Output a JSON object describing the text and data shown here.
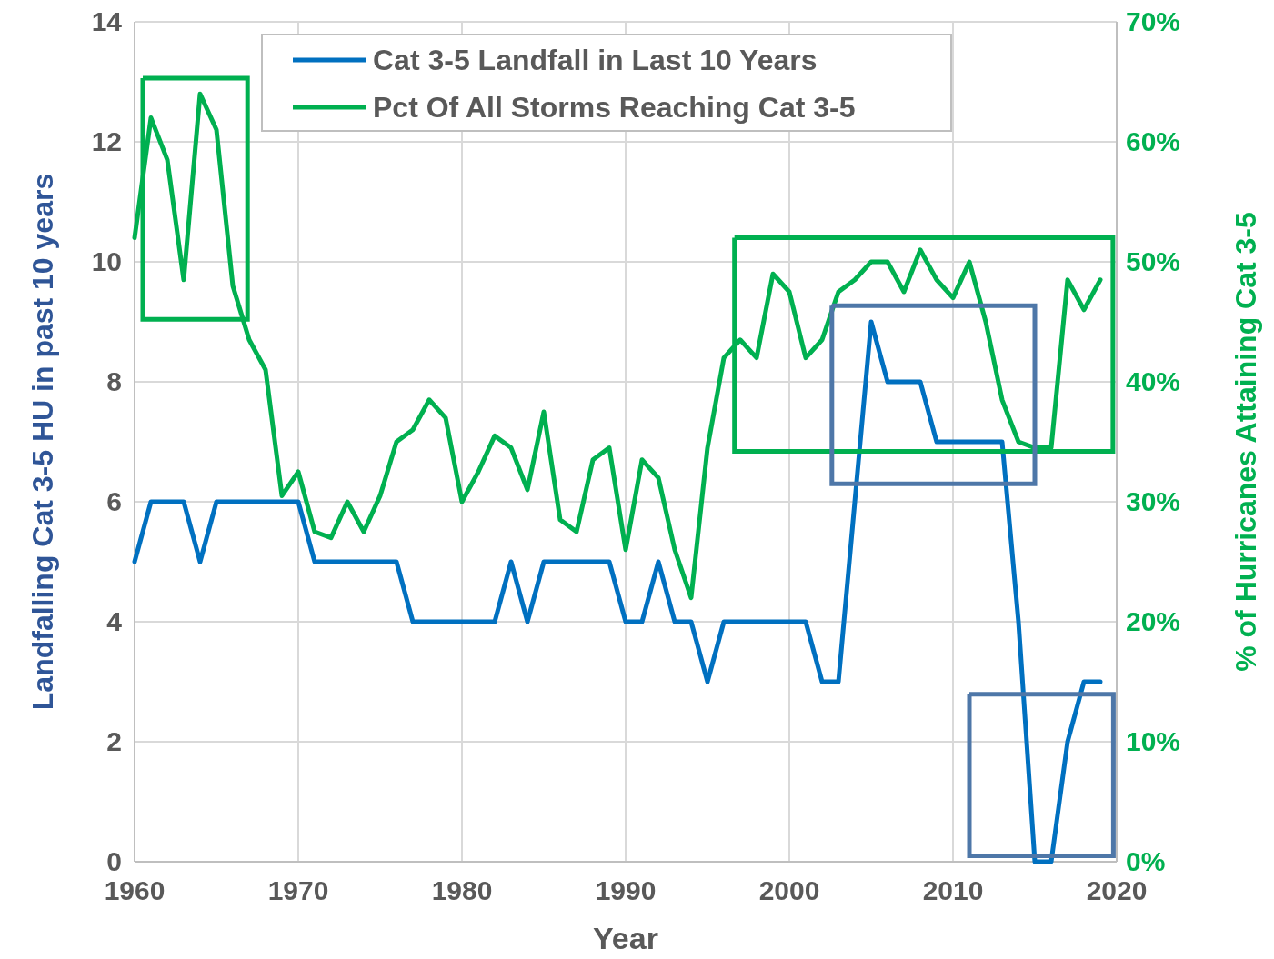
{
  "chart_data": {
    "type": "line",
    "xlabel": "Year",
    "ylabel": "Landfalling Cat 3-5 HU in past 10 years",
    "y2label": "% of Hurricanes Attaining Cat 3-5",
    "x": [
      1960,
      1961,
      1962,
      1963,
      1964,
      1965,
      1966,
      1967,
      1968,
      1969,
      1970,
      1971,
      1972,
      1973,
      1974,
      1975,
      1976,
      1977,
      1978,
      1979,
      1980,
      1981,
      1982,
      1983,
      1984,
      1985,
      1986,
      1987,
      1988,
      1989,
      1990,
      1991,
      1992,
      1993,
      1994,
      1995,
      1996,
      1997,
      1998,
      1999,
      2000,
      2001,
      2002,
      2003,
      2004,
      2005,
      2006,
      2007,
      2008,
      2009,
      2010,
      2011,
      2012,
      2013,
      2014,
      2015,
      2016,
      2017,
      2018,
      2019
    ],
    "series": [
      {
        "name": "Cat 3-5 Landfall in Last 10 Years",
        "color": "#0070c0",
        "values": [
          5,
          6,
          6,
          6,
          5,
          6,
          6,
          6,
          6,
          6,
          6,
          5,
          5,
          5,
          5,
          5,
          5,
          4,
          4,
          4,
          4,
          4,
          4,
          5,
          4,
          5,
          5,
          5,
          5,
          5,
          4,
          4,
          5,
          4,
          4,
          3,
          4,
          4,
          4,
          4,
          4,
          4,
          3,
          3,
          6,
          9,
          8,
          8,
          8,
          7,
          7,
          7,
          7,
          7,
          4,
          0,
          0,
          2,
          3,
          3
        ]
      },
      {
        "name": "Pct Of All Storms Reaching Cat 3-5",
        "color": "#00b050",
        "axis": "y2",
        "values": [
          52,
          62,
          58.5,
          48.5,
          64,
          61,
          48,
          43.5,
          41,
          30.5,
          32.5,
          27.5,
          27,
          30,
          27.5,
          30.5,
          35,
          36,
          38.5,
          37,
          30,
          32.5,
          35.5,
          34.5,
          31,
          37.5,
          28.5,
          27.5,
          33.5,
          34.5,
          26,
          33.5,
          32,
          26,
          22,
          34.5,
          42,
          43.5,
          42,
          49,
          47.5,
          42,
          43.5,
          47.5,
          48.5,
          50,
          50,
          47.5,
          51,
          48.5,
          47,
          50,
          45,
          38.5,
          35,
          34.5,
          34.5,
          48.5,
          46,
          48.5
        ]
      }
    ],
    "xlim": [
      1960,
      2020
    ],
    "xticks": [
      1960,
      1970,
      1980,
      1990,
      2000,
      2010,
      2020
    ],
    "ylim": [
      0,
      14
    ],
    "yticks": [
      0,
      2,
      4,
      6,
      8,
      10,
      12,
      14
    ],
    "y2lim": [
      0,
      70
    ],
    "y2ticks": [
      {
        "value": 0,
        "label": "0%"
      },
      {
        "value": 10,
        "label": "10%"
      },
      {
        "value": 20,
        "label": "20%"
      },
      {
        "value": 30,
        "label": "30%"
      },
      {
        "value": 40,
        "label": "40%"
      },
      {
        "value": 50,
        "label": "50%"
      },
      {
        "value": 60,
        "label": "60%"
      },
      {
        "value": 70,
        "label": "70%"
      }
    ],
    "grid": true,
    "legend": "top",
    "marker": "none",
    "line_style": "solid"
  }
}
